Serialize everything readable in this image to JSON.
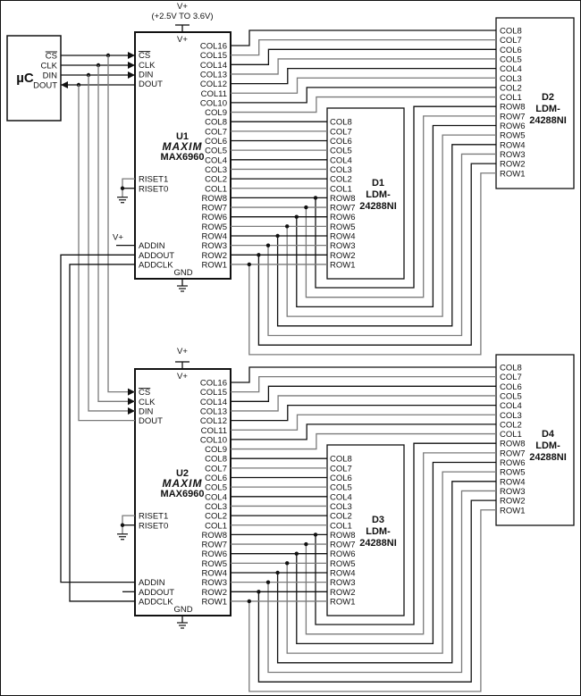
{
  "supply": {
    "vplus": "V+",
    "range": "(+2.5V TO 3.6V)"
  },
  "mcu": {
    "label": "µC",
    "pins": [
      "CS",
      "CLK",
      "DIN",
      "DOUT"
    ]
  },
  "drivers": [
    {
      "ref": "U1",
      "logo": "MAXIM",
      "part": "MAX6960",
      "vplus_pin": "V+",
      "gnd": "GND",
      "addin_supply": "V+",
      "right_pins": [
        "COL16",
        "COL15",
        "COL14",
        "COL13",
        "COL12",
        "COL11",
        "COL10",
        "COL9",
        "COL8",
        "COL7",
        "COL6",
        "COL5",
        "COL4",
        "COL3",
        "COL2",
        "COL1",
        "ROW8",
        "ROW7",
        "ROW6",
        "ROW5",
        "ROW4",
        "ROW3",
        "ROW2",
        "ROW1"
      ],
      "left_pins": [
        "CS",
        "CLK",
        "DIN",
        "DOUT",
        "RISET1",
        "RISET0",
        "ADDIN",
        "ADDOUT",
        "ADDCLK"
      ]
    },
    {
      "ref": "U2",
      "logo": "MAXIM",
      "part": "MAX6960",
      "vplus_pin": "V+",
      "gnd": "GND",
      "supply": "V+",
      "right_pins": [
        "COL16",
        "COL15",
        "COL14",
        "COL13",
        "COL12",
        "COL11",
        "COL10",
        "COL9",
        "COL8",
        "COL7",
        "COL6",
        "COL5",
        "COL4",
        "COL3",
        "COL2",
        "COL1",
        "ROW8",
        "ROW7",
        "ROW6",
        "ROW5",
        "ROW4",
        "ROW3",
        "ROW2",
        "ROW1"
      ],
      "left_pins": [
        "CS",
        "CLK",
        "DIN",
        "DOUT",
        "RISET1",
        "RISET0",
        "ADDIN",
        "ADDOUT",
        "ADDCLK"
      ]
    }
  ],
  "displays": [
    {
      "ref": "D1",
      "line1": "LDM-",
      "line2": "24288NI",
      "pins": [
        "COL8",
        "COL7",
        "COL6",
        "COL5",
        "COL4",
        "COL3",
        "COL2",
        "COL1",
        "ROW8",
        "ROW7",
        "ROW6",
        "ROW5",
        "ROW4",
        "ROW3",
        "ROW2",
        "ROW1"
      ]
    },
    {
      "ref": "D2",
      "line1": "LDM-",
      "line2": "24288NI",
      "pins": [
        "COL8",
        "COL7",
        "COL6",
        "COL5",
        "COL4",
        "COL3",
        "COL2",
        "COL1",
        "ROW8",
        "ROW7",
        "ROW6",
        "ROW5",
        "ROW4",
        "ROW3",
        "ROW2",
        "ROW1"
      ]
    },
    {
      "ref": "D3",
      "line1": "LDM-",
      "line2": "24288NI",
      "pins": [
        "COL8",
        "COL7",
        "COL6",
        "COL5",
        "COL4",
        "COL3",
        "COL2",
        "COL1",
        "ROW8",
        "ROW7",
        "ROW6",
        "ROW5",
        "ROW4",
        "ROW3",
        "ROW2",
        "ROW1"
      ]
    },
    {
      "ref": "D4",
      "line1": "LDM-",
      "line2": "24288NI",
      "pins": [
        "COL8",
        "COL7",
        "COL6",
        "COL5",
        "COL4",
        "COL3",
        "COL2",
        "COL1",
        "ROW8",
        "ROW7",
        "ROW6",
        "ROW5",
        "ROW4",
        "ROW3",
        "ROW2",
        "ROW1"
      ]
    }
  ],
  "colors": {
    "wire_dark": "#111111",
    "wire_gray": "#7a7a7a"
  }
}
